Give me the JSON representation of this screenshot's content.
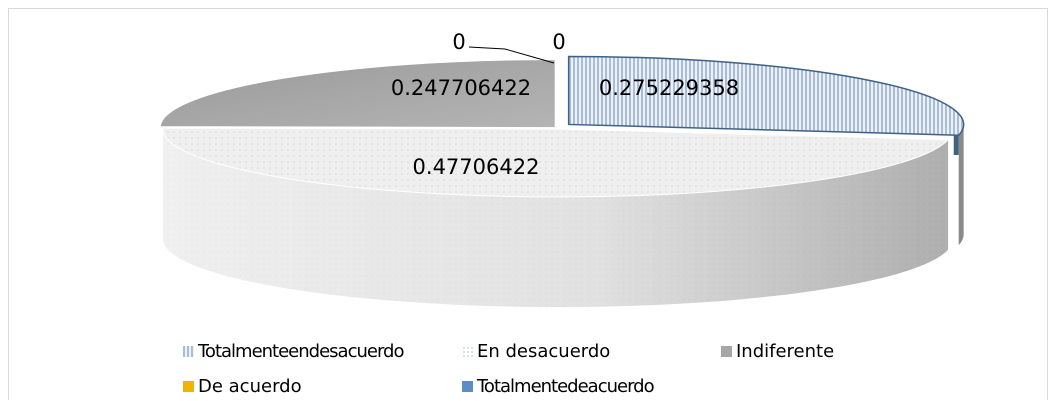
{
  "chart_data": {
    "type": "pie",
    "categories": [
      "Totalmente en desacuerdo",
      "En desacuerdo",
      "Indiferente",
      "De acuerdo",
      "Totalmente de acuerdo"
    ],
    "values": [
      0.275229358,
      0.47706422,
      0.247706422,
      0,
      0
    ],
    "data_labels": [
      "0.275229358",
      "0.47706422",
      "0.247706422",
      "0",
      "0"
    ],
    "legend": {
      "placement": "bottom",
      "entries": [
        {
          "label": "Totalmenteendesacuerdo",
          "color": "#c9d5e8"
        },
        {
          "label": "En desacuerdo",
          "color": "#e4e9f2"
        },
        {
          "label": "Indiferente",
          "color": "#a6a6a6"
        },
        {
          "label": "De acuerdo",
          "color": "#f0b400"
        },
        {
          "label": "Totalmentedeacuerdo",
          "color": "#5b8ec4"
        }
      ]
    },
    "colors": {
      "slice_blue_hatch": "#d5deec",
      "slice_blue_edge": "#3f6185",
      "slice_light": "#ececec",
      "slice_gray": "#a0a0a0"
    }
  }
}
